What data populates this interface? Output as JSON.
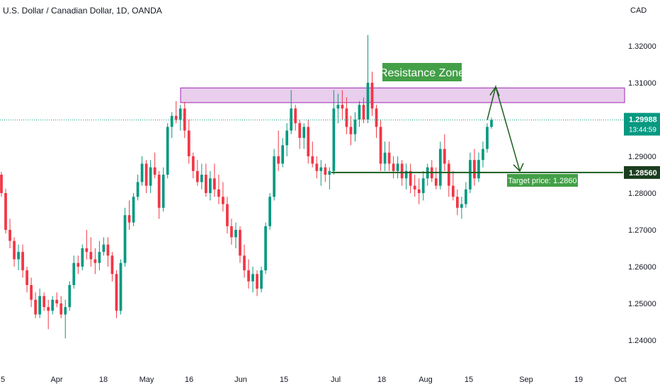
{
  "header": {
    "title": "U.S. Dollar / Canadian Dollar, 1D, OANDA",
    "currency": "CAD"
  },
  "colors": {
    "up": "#089981",
    "down": "#f23645",
    "zone_fill": "#e1bee7",
    "zone_border": "#9c27b0",
    "support_line": "#1b5e20",
    "label_green": "#43a047",
    "arrow_green": "#1b5e20",
    "price_line": "#089981"
  },
  "annotations": {
    "resistance_label": "Resistance Zone",
    "target_label": "Target price: 1.2860"
  },
  "price_tags": {
    "last_price": "1.29988",
    "countdown": "13:44:59",
    "support_price": "1.28560"
  },
  "chart_data": {
    "type": "candlestick",
    "title": "U.S. Dollar / Canadian Dollar, 1D, OANDA",
    "ylabel": "CAD",
    "ylim": [
      1.2375,
      1.3275
    ],
    "y_ticks": [
      "1.32000",
      "1.31000",
      "1.30000",
      "1.29000",
      "1.28000",
      "1.27000",
      "1.26000",
      "1.25000",
      "1.24000"
    ],
    "x_ticks": [
      "5",
      "Apr",
      "18",
      "May",
      "16",
      "Jun",
      "15",
      "Jul",
      "18",
      "Aug",
      "15",
      "Sep",
      "19",
      "Oct"
    ],
    "resistance_zone": [
      1.3046,
      1.3086
    ],
    "support_level": 1.2856,
    "target_price": 1.286,
    "last_price": 1.29988,
    "candles": [
      [
        1.285,
        1.2858,
        1.279,
        1.28
      ],
      [
        1.28,
        1.2812,
        1.269,
        1.27
      ],
      [
        1.27,
        1.273,
        1.265,
        1.267
      ],
      [
        1.267,
        1.268,
        1.26,
        1.262
      ],
      [
        1.262,
        1.266,
        1.259,
        1.264
      ],
      [
        1.264,
        1.266,
        1.257,
        1.259
      ],
      [
        1.259,
        1.26,
        1.253,
        1.255
      ],
      [
        1.255,
        1.257,
        1.249,
        1.251
      ],
      [
        1.251,
        1.253,
        1.246,
        1.247
      ],
      [
        1.247,
        1.254,
        1.246,
        1.252
      ],
      [
        1.252,
        1.253,
        1.248,
        1.249
      ],
      [
        1.249,
        1.251,
        1.243,
        1.248
      ],
      [
        1.248,
        1.252,
        1.247,
        1.251
      ],
      [
        1.251,
        1.253,
        1.249,
        1.25
      ],
      [
        1.25,
        1.252,
        1.246,
        1.247
      ],
      [
        1.247,
        1.251,
        1.2405,
        1.249
      ],
      [
        1.249,
        1.256,
        1.248,
        1.255
      ],
      [
        1.255,
        1.263,
        1.254,
        1.261
      ],
      [
        1.261,
        1.263,
        1.258,
        1.26
      ],
      [
        1.26,
        1.266,
        1.259,
        1.265
      ],
      [
        1.265,
        1.27,
        1.262,
        1.264
      ],
      [
        1.264,
        1.268,
        1.26,
        1.262
      ],
      [
        1.262,
        1.265,
        1.258,
        1.261
      ],
      [
        1.261,
        1.267,
        1.259,
        1.264
      ],
      [
        1.264,
        1.268,
        1.263,
        1.266
      ],
      [
        1.266,
        1.268,
        1.26,
        1.263
      ],
      [
        1.263,
        1.264,
        1.256,
        1.258
      ],
      [
        1.258,
        1.259,
        1.246,
        1.248
      ],
      [
        1.248,
        1.262,
        1.247,
        1.261
      ],
      [
        1.261,
        1.276,
        1.26,
        1.274
      ],
      [
        1.274,
        1.278,
        1.27,
        1.272
      ],
      [
        1.272,
        1.28,
        1.271,
        1.279
      ],
      [
        1.279,
        1.285,
        1.278,
        1.283
      ],
      [
        1.283,
        1.29,
        1.282,
        1.288
      ],
      [
        1.288,
        1.289,
        1.28,
        1.282
      ],
      [
        1.282,
        1.289,
        1.28,
        1.287
      ],
      [
        1.287,
        1.291,
        1.284,
        1.285
      ],
      [
        1.285,
        1.286,
        1.273,
        1.276
      ],
      [
        1.276,
        1.287,
        1.275,
        1.285
      ],
      [
        1.285,
        1.299,
        1.284,
        1.298
      ],
      [
        1.298,
        1.302,
        1.295,
        1.301
      ],
      [
        1.301,
        1.305,
        1.299,
        1.3
      ],
      [
        1.3,
        1.304,
        1.297,
        1.303
      ],
      [
        1.303,
        1.3048,
        1.295,
        1.297
      ],
      [
        1.297,
        1.3,
        1.288,
        1.29
      ],
      [
        1.29,
        1.291,
        1.284,
        1.286
      ],
      [
        1.286,
        1.289,
        1.282,
        1.283
      ],
      [
        1.283,
        1.288,
        1.281,
        1.285
      ],
      [
        1.285,
        1.288,
        1.279,
        1.28
      ],
      [
        1.28,
        1.286,
        1.278,
        1.284
      ],
      [
        1.284,
        1.288,
        1.279,
        1.281
      ],
      [
        1.281,
        1.285,
        1.277,
        1.279
      ],
      [
        1.279,
        1.283,
        1.275,
        1.277
      ],
      [
        1.277,
        1.279,
        1.269,
        1.271
      ],
      [
        1.271,
        1.273,
        1.266,
        1.268
      ],
      [
        1.268,
        1.272,
        1.265,
        1.27
      ],
      [
        1.27,
        1.271,
        1.261,
        1.263
      ],
      [
        1.263,
        1.266,
        1.257,
        1.259
      ],
      [
        1.259,
        1.262,
        1.254,
        1.256
      ],
      [
        1.256,
        1.26,
        1.253,
        1.258
      ],
      [
        1.258,
        1.259,
        1.252,
        1.254
      ],
      [
        1.254,
        1.26,
        1.253,
        1.259
      ],
      [
        1.259,
        1.272,
        1.258,
        1.271
      ],
      [
        1.271,
        1.28,
        1.27,
        1.279
      ],
      [
        1.279,
        1.292,
        1.278,
        1.29
      ],
      [
        1.29,
        1.297,
        1.286,
        1.288
      ],
      [
        1.288,
        1.295,
        1.287,
        1.293
      ],
      [
        1.293,
        1.299,
        1.29,
        1.297
      ],
      [
        1.297,
        1.308,
        1.296,
        1.303
      ],
      [
        1.303,
        1.304,
        1.297,
        1.299
      ],
      [
        1.299,
        1.3,
        1.292,
        1.295
      ],
      [
        1.295,
        1.299,
        1.292,
        1.298
      ],
      [
        1.298,
        1.3,
        1.288,
        1.29
      ],
      [
        1.29,
        1.294,
        1.287,
        1.288
      ],
      [
        1.288,
        1.29,
        1.284,
        1.286
      ],
      [
        1.286,
        1.289,
        1.282,
        1.287
      ],
      [
        1.287,
        1.288,
        1.283,
        1.285
      ],
      [
        1.285,
        1.287,
        1.281,
        1.286
      ],
      [
        1.286,
        1.308,
        1.285,
        1.303
      ],
      [
        1.303,
        1.307,
        1.299,
        1.304
      ],
      [
        1.304,
        1.308,
        1.3,
        1.303
      ],
      [
        1.303,
        1.306,
        1.296,
        1.298
      ],
      [
        1.298,
        1.301,
        1.293,
        1.296
      ],
      [
        1.296,
        1.302,
        1.294,
        1.3
      ],
      [
        1.3,
        1.305,
        1.298,
        1.304
      ],
      [
        1.304,
        1.306,
        1.299,
        1.3
      ],
      [
        1.3,
        1.323,
        1.299,
        1.31
      ],
      [
        1.31,
        1.313,
        1.301,
        1.303
      ],
      [
        1.303,
        1.304,
        1.295,
        1.298
      ],
      [
        1.298,
        1.3,
        1.286,
        1.288
      ],
      [
        1.288,
        1.294,
        1.286,
        1.291
      ],
      [
        1.291,
        1.294,
        1.286,
        1.288
      ],
      [
        1.288,
        1.29,
        1.284,
        1.286
      ],
      [
        1.286,
        1.29,
        1.284,
        1.288
      ],
      [
        1.288,
        1.289,
        1.282,
        1.284
      ],
      [
        1.284,
        1.288,
        1.281,
        1.286
      ],
      [
        1.286,
        1.288,
        1.28,
        1.282
      ],
      [
        1.282,
        1.285,
        1.279,
        1.281
      ],
      [
        1.281,
        1.284,
        1.277,
        1.28
      ],
      [
        1.28,
        1.286,
        1.278,
        1.284
      ],
      [
        1.284,
        1.288,
        1.282,
        1.287
      ],
      [
        1.287,
        1.289,
        1.283,
        1.284
      ],
      [
        1.284,
        1.287,
        1.281,
        1.282
      ],
      [
        1.282,
        1.294,
        1.281,
        1.292
      ],
      [
        1.292,
        1.296,
        1.286,
        1.288
      ],
      [
        1.288,
        1.289,
        1.279,
        1.282
      ],
      [
        1.282,
        1.286,
        1.278,
        1.279
      ],
      [
        1.279,
        1.281,
        1.274,
        1.276
      ],
      [
        1.276,
        1.279,
        1.273,
        1.277
      ],
      [
        1.277,
        1.283,
        1.276,
        1.281
      ],
      [
        1.281,
        1.291,
        1.28,
        1.289
      ],
      [
        1.289,
        1.292,
        1.282,
        1.284
      ],
      [
        1.284,
        1.291,
        1.283,
        1.289
      ],
      [
        1.289,
        1.294,
        1.287,
        1.292
      ],
      [
        1.292,
        1.299,
        1.291,
        1.298
      ],
      [
        1.298,
        1.3005,
        1.2975,
        1.2999
      ]
    ]
  }
}
